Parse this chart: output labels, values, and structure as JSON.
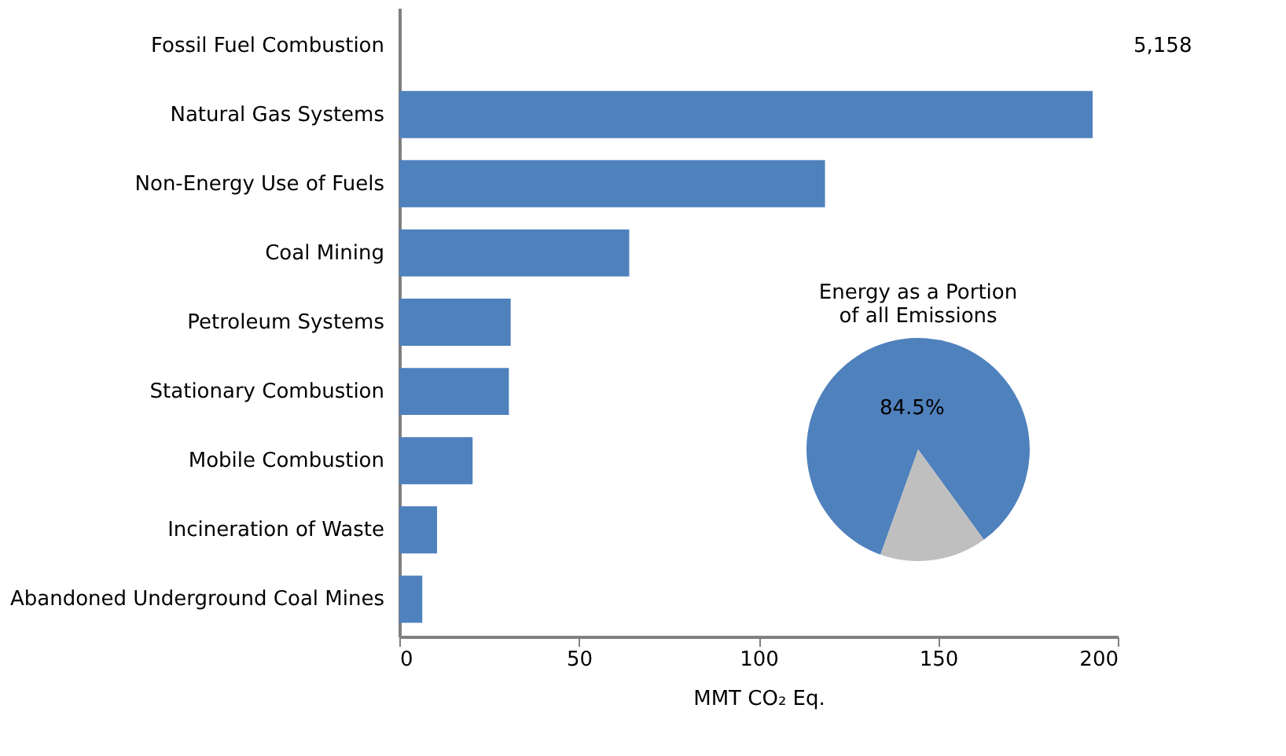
{
  "chart_data": [
    {
      "type": "bar",
      "orientation": "horizontal",
      "categories": [
        "Fossil Fuel Combustion",
        "Natural Gas Systems",
        "Non-Energy Use of Fuels",
        "Coal Mining",
        "Petroleum Systems",
        "Stationary Combustion",
        "Mobile Combustion",
        "Incineration of Waste",
        "Abandoned Underground Coal Mines"
      ],
      "values": [
        null,
        193,
        118.5,
        64,
        31,
        30.5,
        20.4,
        10.5,
        6.4
      ],
      "value_labels": [
        "5,158",
        null,
        null,
        null,
        null,
        null,
        null,
        null,
        null
      ],
      "color": "#4f81bd",
      "xlim": [
        0,
        200
      ],
      "xticks": [
        0,
        50,
        100,
        150,
        200
      ],
      "xlabel": "MMT CO₂ Eq.",
      "grid": false
    },
    {
      "type": "pie",
      "title": "Energy as a Portion\nof all Emissions",
      "categories": [
        null,
        null
      ],
      "values": [
        84.5,
        15.5
      ],
      "colors": [
        "#4f81bd",
        "#bfbfbf"
      ],
      "value_labels": [
        "84.5%",
        null
      ]
    }
  ]
}
